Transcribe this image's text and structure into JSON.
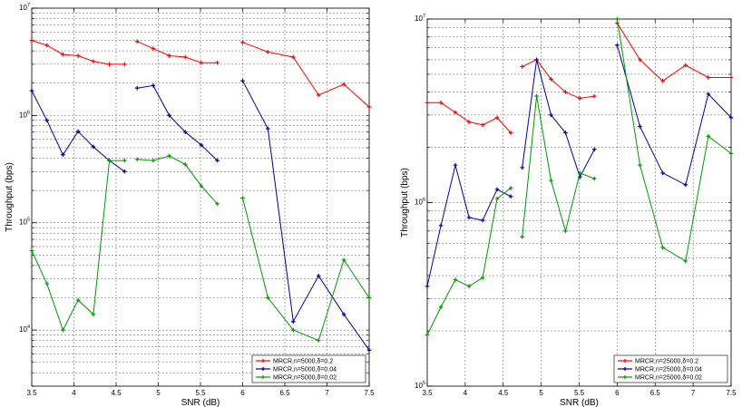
{
  "chart_data": [
    {
      "type": "line",
      "xlabel": "SNR (dB)",
      "ylabel": "Throughput (bps)",
      "xlim": [
        3.5,
        7.5
      ],
      "ylim": [
        3000,
        10000000
      ],
      "yscale": "log",
      "xticks": [
        3.5,
        4,
        4.5,
        5,
        5.5,
        6,
        6.5,
        7,
        7.5
      ],
      "xtick_labels": [
        "3.5",
        "4",
        "4.5",
        "5",
        "5.5",
        "6",
        "6.5",
        "7",
        "7.5"
      ],
      "yticks": [
        10000,
        100000,
        1000000,
        10000000
      ],
      "ytick_bases": [
        "10",
        "10",
        "10",
        "10"
      ],
      "ytick_exps": [
        "4",
        "5",
        "6",
        "7"
      ],
      "grid": true,
      "legend_position": "bottom-right",
      "series": [
        {
          "name": "MRCR,n=5000,δ=0.2",
          "color": "#ff0000",
          "segments": [
            {
              "x": [
                3.5,
                3.68,
                3.87,
                4.05,
                4.23,
                4.42,
                4.6
              ],
              "y": [
                5000000,
                4500000,
                3700000,
                3600000,
                3200000,
                3000000,
                3000000
              ]
            },
            {
              "x": [
                4.75,
                4.94,
                5.13,
                5.32,
                5.51,
                5.7
              ],
              "y": [
                4900000,
                4200000,
                3600000,
                3500000,
                3100000,
                3100000
              ]
            },
            {
              "x": [
                6.0,
                6.3,
                6.6,
                6.9,
                7.2,
                7.5
              ],
              "y": [
                4800000,
                3900000,
                3500000,
                1550000,
                1950000,
                1200000
              ]
            }
          ]
        },
        {
          "name": "MRCR,n=5000,δ=0.04",
          "color": "#000099",
          "segments": [
            {
              "x": [
                3.5,
                3.68,
                3.87,
                4.05,
                4.23,
                4.42,
                4.6
              ],
              "y": [
                1700000,
                900000,
                430000,
                710000,
                510000,
                380000,
                300000
              ]
            },
            {
              "x": [
                4.75,
                4.94,
                5.13,
                5.32,
                5.51,
                5.7
              ],
              "y": [
                1800000,
                1900000,
                1000000,
                700000,
                530000,
                380000
              ]
            },
            {
              "x": [
                6.0,
                6.3,
                6.6,
                6.9,
                7.2,
                7.5
              ],
              "y": [
                2100000,
                750000,
                12000,
                32000,
                14000,
                6500
              ]
            }
          ]
        },
        {
          "name": "MRCR,n=5000,δ=0.02",
          "color": "#009900",
          "segments": [
            {
              "x": [
                3.5,
                3.68,
                3.87,
                4.05,
                4.23,
                4.42,
                4.6
              ],
              "y": [
                55000,
                27000,
                10000,
                19000,
                14000,
                380000,
                380000
              ]
            },
            {
              "x": [
                4.75,
                4.94,
                5.13,
                5.32,
                5.51,
                5.7
              ],
              "y": [
                390000,
                380000,
                420000,
                350000,
                220000,
                150000
              ]
            },
            {
              "x": [
                6.0,
                6.3,
                6.6,
                6.9,
                7.2,
                7.5
              ],
              "y": [
                170000,
                20000,
                10000,
                8000,
                45000,
                20000
              ]
            }
          ]
        }
      ]
    },
    {
      "type": "line",
      "xlabel": "SNR (dB)",
      "ylabel": "Throughput (bps)",
      "xlim": [
        3.5,
        7.5
      ],
      "ylim": [
        100000,
        10000000
      ],
      "yscale": "log",
      "xticks": [
        3.5,
        4,
        4.5,
        5,
        5.5,
        6,
        6.5,
        7,
        7.5
      ],
      "xtick_labels": [
        "3.5",
        "4",
        "4.5",
        "5",
        "5.5",
        "6",
        "6.5",
        "7",
        "7.5"
      ],
      "yticks": [
        100000,
        1000000,
        10000000
      ],
      "ytick_bases": [
        "10",
        "10",
        "10"
      ],
      "ytick_exps": [
        "5",
        "6",
        "7"
      ],
      "grid": true,
      "legend_position": "bottom-right",
      "series": [
        {
          "name": "MRCR,n=25000,δ=0.2",
          "color": "#ff0000",
          "segments": [
            {
              "x": [
                3.5,
                3.68,
                3.87,
                4.05,
                4.23,
                4.42,
                4.6
              ],
              "y": [
                3500000,
                3500000,
                3100000,
                2750000,
                2650000,
                2900000,
                2400000
              ]
            },
            {
              "x": [
                4.75,
                4.94,
                5.13,
                5.32,
                5.51,
                5.7
              ],
              "y": [
                5500000,
                6000000,
                4700000,
                4000000,
                3700000,
                3800000
              ]
            },
            {
              "x": [
                6.0,
                6.3,
                6.6,
                6.9,
                7.2,
                7.5
              ],
              "y": [
                9500000,
                6000000,
                4600000,
                5600000,
                4800000,
                4800000
              ]
            }
          ]
        },
        {
          "name": "MRCR,n=25000,δ=0.04",
          "color": "#000099",
          "segments": [
            {
              "x": [
                3.5,
                3.68,
                3.87,
                4.05,
                4.23,
                4.42,
                4.6
              ],
              "y": [
                350000,
                750000,
                1600000,
                830000,
                800000,
                1180000,
                1080000
              ]
            },
            {
              "x": [
                4.75,
                4.94,
                5.13,
                5.32,
                5.51,
                5.7
              ],
              "y": [
                1550000,
                6000000,
                3000000,
                2400000,
                1380000,
                1950000
              ]
            },
            {
              "x": [
                6.0,
                6.3,
                6.6,
                6.9,
                7.2,
                7.5
              ],
              "y": [
                7200000,
                2600000,
                1450000,
                1250000,
                3900000,
                2900000
              ]
            }
          ]
        },
        {
          "name": "MRCR,n=25000,δ=0.02",
          "color": "#009900",
          "segments": [
            {
              "x": [
                3.5,
                3.68,
                3.87,
                4.05,
                4.23,
                4.42,
                4.6
              ],
              "y": [
                190000,
                270000,
                380000,
                350000,
                390000,
                1050000,
                1200000
              ]
            },
            {
              "x": [
                4.75,
                4.94,
                5.13,
                5.32,
                5.51,
                5.7
              ],
              "y": [
                650000,
                3800000,
                1320000,
                700000,
                1450000,
                1350000
              ]
            },
            {
              "x": [
                6.0,
                6.3,
                6.6,
                6.9,
                7.2,
                7.5
              ],
              "y": [
                10000000,
                1600000,
                570000,
                480000,
                2300000,
                1850000
              ]
            }
          ]
        }
      ]
    }
  ]
}
